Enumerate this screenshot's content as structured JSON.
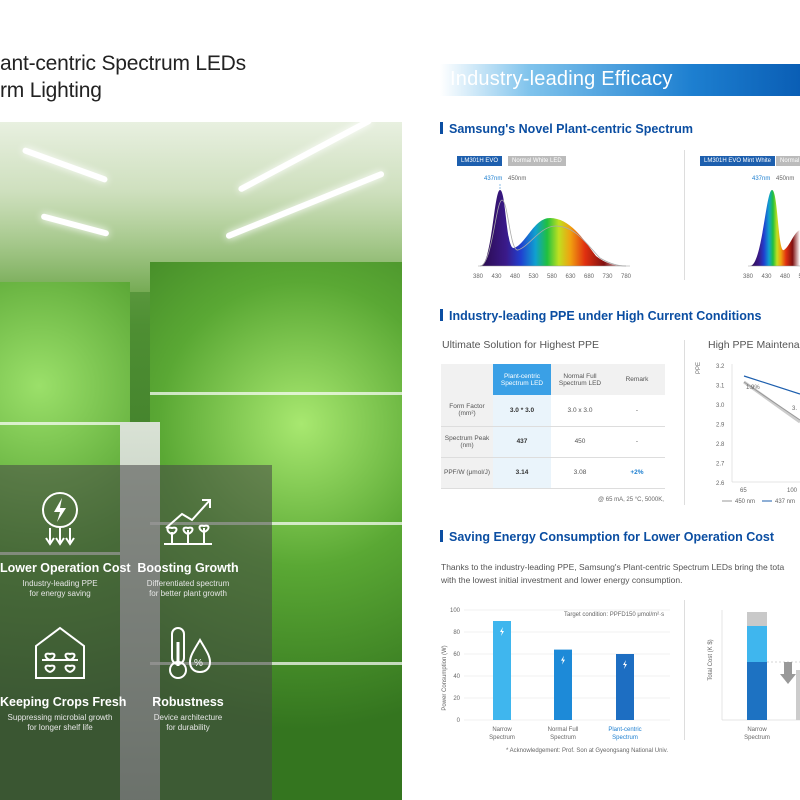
{
  "left": {
    "headline_line1": "ant-centric Spectrum LEDs",
    "headline_line2": "rm Lighting",
    "features": [
      {
        "icon": "lightning-plug-icon",
        "title": "Lower Operation Cost",
        "desc1": "Industry-leading PPE",
        "desc2": "for energy saving"
      },
      {
        "icon": "plant-growth-chart-icon",
        "title": "Boosting Growth",
        "desc1": "Differentiated spectrum",
        "desc2": "for better plant growth"
      },
      {
        "icon": "greenhouse-icon",
        "title": "Keeping Crops Fresh",
        "desc1": "Suppressing microbial growth",
        "desc2": "for longer shelf life"
      },
      {
        "icon": "thermometer-drop-icon",
        "title": "Robustness",
        "desc1": "Device architecture",
        "desc2": "for durability"
      }
    ]
  },
  "right": {
    "banner_title": "Industry-leading Efficacy",
    "section1": {
      "title": "Samsung's Novel Plant-centric Spectrum",
      "chart1": {
        "tag_a": "LM301H EVO",
        "tag_b": "Normal White LED",
        "peak_a": "437nm",
        "peak_b": "450nm",
        "ticks": [
          "380",
          "430",
          "480",
          "530",
          "580",
          "630",
          "680",
          "730",
          "780"
        ]
      },
      "chart2": {
        "tag_a": "LM301H EVO Mint White",
        "tag_b": "Normal",
        "peak_a": "437nm",
        "peak_b": "450nm",
        "ticks": [
          "380",
          "430",
          "480",
          "530"
        ]
      }
    },
    "section2": {
      "title": "Industry-leading PPE under High Current Conditions",
      "sub_left": "Ultimate Solution for Highest PPE",
      "sub_right": "High PPE Maintena",
      "table": {
        "headers": [
          "",
          "Plant-centric Spectrum LED",
          "Normal Full Spectrum LED",
          "Remark"
        ],
        "rows": [
          [
            "Form Factor (mm²)",
            "3.0 * 3.0",
            "3.0 x 3.0",
            "-"
          ],
          [
            "Spectrum Peak (nm)",
            "437",
            "450",
            "-"
          ],
          [
            "PPF/W (μmol/J)",
            "3.14",
            "3.08",
            "+2%"
          ]
        ],
        "note": "@ 65 mA, 25 °C, 5000K,"
      },
      "line_chart": {
        "ylabel": "PPE",
        "yticks": [
          "3.2",
          "3.1",
          "3.0",
          "2.9",
          "2.8",
          "2.7",
          "2.6"
        ],
        "xticks": [
          "65",
          "100"
        ],
        "ann1": "1.9%",
        "ann2": "3.",
        "legend_a": "450 nm",
        "legend_b": "437 nm"
      }
    },
    "section3": {
      "title": "Saving Energy Consumption for Lower Operation Cost",
      "body1": "Thanks to the industry-leading PPE, Samsung's Plant-centric Spectrum LEDs bring the tota",
      "body2": "with the lowest initial investment and lower energy consumption.",
      "bar_chart": {
        "ylabel": "Power Consumption (W)",
        "target": "Target condition: PPFD150 μmol/m²·s",
        "yticks": [
          "100",
          "80",
          "60",
          "40",
          "20",
          "0"
        ],
        "bars": [
          {
            "label1": "Narrow",
            "label2": "Spectrum",
            "value": 90
          },
          {
            "label1": "Normal Full",
            "label2": "Spectrum",
            "value": 64
          },
          {
            "label1": "Plant-centric",
            "label2": "Spectrum",
            "value": 60
          }
        ],
        "ack": "* Acknowledgement: Prof. Son at Gyeongsang National Univ."
      },
      "cost_chart": {
        "ylabel": "Total Cost (K $)",
        "label1": "Narrow",
        "label2": "Spectrum"
      }
    }
  }
}
